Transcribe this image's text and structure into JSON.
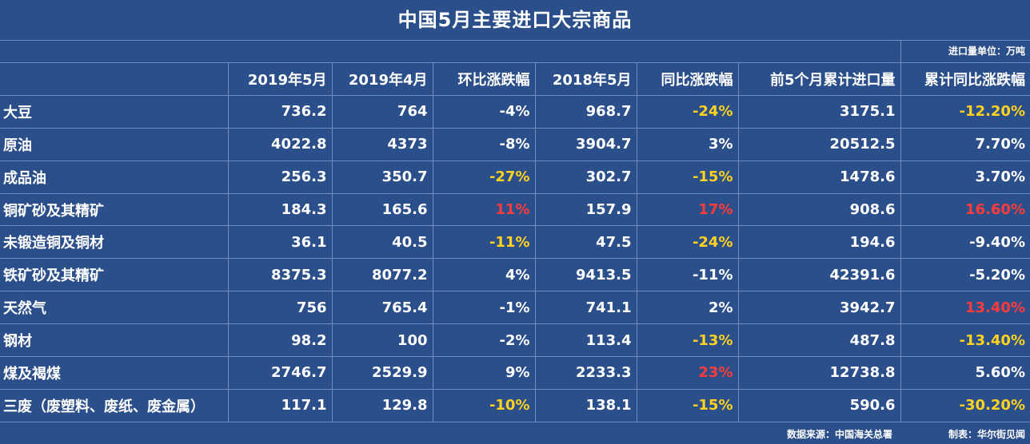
{
  "title": "中国5月主要进口大宗商品",
  "unit_note": "进口量单位：万吨",
  "source": "数据来源：中国海关总署",
  "maker": "制表：华尔街见闻",
  "colors": {
    "background": "#2b4f8a",
    "text": "#ffffff",
    "highlight_yellow": "#ffd21f",
    "highlight_red": "#ff3b3b",
    "grid": "#6f8fc0"
  },
  "chart_data": {
    "type": "table",
    "title": "中国5月主要进口大宗商品",
    "columns": [
      "",
      "2019年5月",
      "2019年4月",
      "环比涨跌幅",
      "2018年5月",
      "同比涨跌幅",
      "前5个月累计进口量",
      "累计同比涨跌幅"
    ],
    "rows": [
      {
        "cells": [
          "大豆",
          "736.2",
          "764",
          "-4%",
          "968.7",
          "-24%",
          "3175.1",
          "-12.20%"
        ],
        "colors": [
          "",
          "",
          "",
          "",
          "",
          "yellow",
          "",
          "yellow"
        ]
      },
      {
        "cells": [
          "原油",
          "4022.8",
          "4373",
          "-8%",
          "3904.7",
          "3%",
          "20512.5",
          "7.70%"
        ],
        "colors": [
          "",
          "",
          "",
          "",
          "",
          "",
          "",
          ""
        ]
      },
      {
        "cells": [
          "成品油",
          "256.3",
          "350.7",
          "-27%",
          "302.7",
          "-15%",
          "1478.6",
          "3.70%"
        ],
        "colors": [
          "",
          "",
          "",
          "yellow",
          "",
          "yellow",
          "",
          ""
        ]
      },
      {
        "cells": [
          "铜矿砂及其精矿",
          "184.3",
          "165.6",
          "11%",
          "157.9",
          "17%",
          "908.6",
          "16.60%"
        ],
        "colors": [
          "",
          "",
          "",
          "red",
          "",
          "red",
          "",
          "red"
        ]
      },
      {
        "cells": [
          "未锻造铜及铜材",
          "36.1",
          "40.5",
          "-11%",
          "47.5",
          "-24%",
          "194.6",
          "-9.40%"
        ],
        "colors": [
          "",
          "",
          "",
          "yellow",
          "",
          "yellow",
          "",
          ""
        ]
      },
      {
        "cells": [
          "铁矿砂及其精矿",
          "8375.3",
          "8077.2",
          "4%",
          "9413.5",
          "-11%",
          "42391.6",
          "-5.20%"
        ],
        "colors": [
          "",
          "",
          "",
          "",
          "",
          "",
          "",
          ""
        ]
      },
      {
        "cells": [
          "天然气",
          "756",
          "765.4",
          "-1%",
          "741.1",
          "2%",
          "3942.7",
          "13.40%"
        ],
        "colors": [
          "",
          "",
          "",
          "",
          "",
          "",
          "",
          "red"
        ]
      },
      {
        "cells": [
          "钢材",
          "98.2",
          "100",
          "-2%",
          "113.4",
          "-13%",
          "487.8",
          "-13.40%"
        ],
        "colors": [
          "",
          "",
          "",
          "",
          "",
          "yellow",
          "",
          "yellow"
        ]
      },
      {
        "cells": [
          "煤及褐煤",
          "2746.7",
          "2529.9",
          "9%",
          "2233.3",
          "23%",
          "12738.8",
          "5.60%"
        ],
        "colors": [
          "",
          "",
          "",
          "",
          "",
          "red",
          "",
          ""
        ]
      },
      {
        "cells": [
          "三废（废塑料、废纸、废金属）",
          "117.1",
          "129.8",
          "-10%",
          "138.1",
          "-15%",
          "590.6",
          "-30.20%"
        ],
        "colors": [
          "",
          "",
          "",
          "yellow",
          "",
          "yellow",
          "",
          "yellow"
        ]
      }
    ]
  }
}
